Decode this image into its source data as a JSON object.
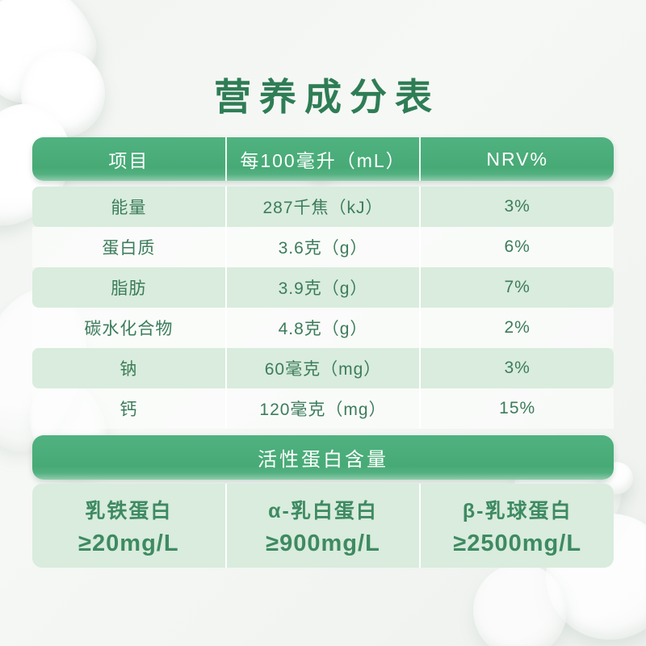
{
  "page": {
    "title": "营养成分表"
  },
  "nutrition_table": {
    "headers": [
      "项目",
      "每100毫升（mL）",
      "NRV%"
    ],
    "rows": [
      {
        "item": "能量",
        "amount": "287千焦（kJ）",
        "nrv": "3%"
      },
      {
        "item": "蛋白质",
        "amount": "3.6克（g）",
        "nrv": "6%"
      },
      {
        "item": "脂肪",
        "amount": "3.9克（g）",
        "nrv": "7%"
      },
      {
        "item": "碳水化合物",
        "amount": "4.8克（g）",
        "nrv": "2%"
      },
      {
        "item": "钠",
        "amount": "60毫克（mg）",
        "nrv": "3%"
      },
      {
        "item": "钙",
        "amount": "120毫克（mg）",
        "nrv": "15%"
      }
    ]
  },
  "protein_section": {
    "title": "活性蛋白含量",
    "items": [
      {
        "name": "乳铁蛋白",
        "value": "≥20mg/L"
      },
      {
        "name": "α-乳白蛋白",
        "value": "≥900mg/L"
      },
      {
        "name": "β-乳球蛋白",
        "value": "≥2500mg/L"
      }
    ]
  },
  "colors": {
    "header_green": "#49AB77",
    "row_light_green": "#D9ECDD",
    "text_green": "#3C7C5B",
    "title_green": "#2E7D55",
    "header_text": "#FFFFFF"
  }
}
